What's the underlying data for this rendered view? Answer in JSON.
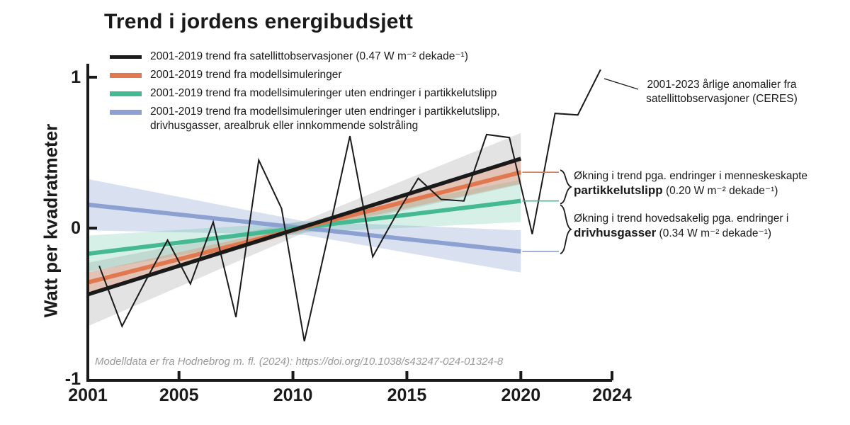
{
  "title": "Trend i jordens energibudsjett",
  "colors": {
    "black": "#1a1a1a",
    "orange": "#e0794f",
    "green": "#45b992",
    "blue": "#8ca0d2",
    "gray_band": "rgba(60,60,60,0.14)",
    "orange_band": "rgba(224,121,79,0.30)",
    "green_band": "rgba(69,185,146,0.22)",
    "blue_band": "rgba(140,160,210,0.33)",
    "text": "#1a1a1a",
    "source_text": "#999999"
  },
  "legend": {
    "items": [
      {
        "color_key": "black",
        "lines": [
          "2001-2019 trend fra satellittobservasjoner (0.47 W m⁻² dekade⁻¹)"
        ]
      },
      {
        "color_key": "orange",
        "lines": [
          "2001-2019 trend fra modellsimuleringer"
        ]
      },
      {
        "color_key": "green",
        "lines": [
          "2001-2019 trend fra modellsimuleringer uten endringer i partikkelutslipp"
        ]
      },
      {
        "color_key": "blue",
        "lines": [
          "2001-2019 trend fra modellsimuleringer uten endringer i partikkelutslipp,",
          "drivhusgasser, arealbruk eller innkommende solstråling"
        ]
      }
    ]
  },
  "axes": {
    "y": {
      "label": "Watt per kvadratmeter"
    },
    "x": {
      "label": ""
    }
  },
  "annotations": {
    "ceres": {
      "line1": "2001-2023 årlige anomalier fra",
      "line2": "satellittobservasjoner (CERES)"
    },
    "aerosol": {
      "line1": "Økning i trend pga. endringer i menneskeskapte",
      "bold": "partikkelutslipp",
      "rest": " (0.20 W m⁻² dekade⁻¹)"
    },
    "ghg": {
      "line1": "Økning i trend hovedsakelig pga. endringer i",
      "bold": "drivhusgasser",
      "rest": " (0.34 W m⁻² dekade⁻¹)"
    }
  },
  "source": "Modelldata er fra Hodnebrog m. fl. (2024): https://doi.org/10.1038/s43247-024-01324-8",
  "chart_data": {
    "type": "line",
    "title": "Trend i jordens energibudsjett",
    "xlabel": "",
    "ylabel": "Watt per kvadratmeter",
    "xlim": [
      2001,
      2024
    ],
    "ylim": [
      -1,
      1
    ],
    "x_ticks": [
      2001,
      2005,
      2010,
      2015,
      2020,
      2024
    ],
    "y_ticks": [
      1,
      0,
      -1
    ],
    "grid": false,
    "anomalies": {
      "name": "2001-2023 årlige anomalier fra satellittobservasjoner (CERES)",
      "years": [
        2001,
        2002,
        2003,
        2004,
        2005,
        2006,
        2007,
        2008,
        2009,
        2010,
        2011,
        2012,
        2013,
        2014,
        2015,
        2016,
        2017,
        2018,
        2019,
        2020,
        2021,
        2022,
        2023
      ],
      "values": [
        -0.25,
        -0.65,
        -0.36,
        -0.08,
        -0.37,
        0.04,
        -0.59,
        0.45,
        0.13,
        -0.75,
        -0.08,
        0.61,
        -0.19,
        0.08,
        0.33,
        0.19,
        0.18,
        0.62,
        0.6,
        -0.04,
        0.76,
        0.75,
        1.05
      ]
    },
    "trends": [
      {
        "name": "2001-2019 trend fra satellittobservasjoner",
        "slope_per_decade": 0.47,
        "color_key": "black",
        "band_key": "gray_band",
        "year_start": 2001,
        "year_end": 2020,
        "v_start": -0.44,
        "v_end": 0.46,
        "band_offsets": [
          0.21,
          0.04,
          0.17
        ],
        "right_tick": false
      },
      {
        "name": "2001-2019 trend fra modellsimuleringer",
        "slope_per_decade": 0.385,
        "color_key": "orange",
        "band_key": "orange_band",
        "year_start": 2001,
        "year_end": 2020,
        "v_start": -0.36,
        "v_end": 0.37,
        "band_offsets": [
          0.065,
          0.02,
          0.075
        ],
        "right_tick": true
      },
      {
        "name": "2001-2019 trend fra modellsimuleringer uten endringer i partikkelutslipp",
        "slope_per_decade": 0.184,
        "color_key": "green",
        "band_key": "green_band",
        "year_start": 2001,
        "year_end": 2020,
        "v_start": -0.17,
        "v_end": 0.18,
        "band_offsets": [
          0.12,
          0.035,
          0.14
        ],
        "right_tick": true
      },
      {
        "name": "2001-2019 trend fra modellsimuleringer uten endringer i partikkelutslipp, drivhusgasser, arealbruk eller innkommende solstråling",
        "slope_per_decade": -0.163,
        "color_key": "blue",
        "band_key": "blue_band",
        "year_start": 2001,
        "year_end": 2020,
        "v_start": 0.155,
        "v_end": -0.155,
        "band_offsets": [
          0.17,
          0.045,
          0.14
        ],
        "right_tick": true
      }
    ],
    "trend_increase_aerosol_per_decade": 0.2,
    "trend_increase_ghg_per_decade": 0.34,
    "legend_position": "upper-left"
  }
}
